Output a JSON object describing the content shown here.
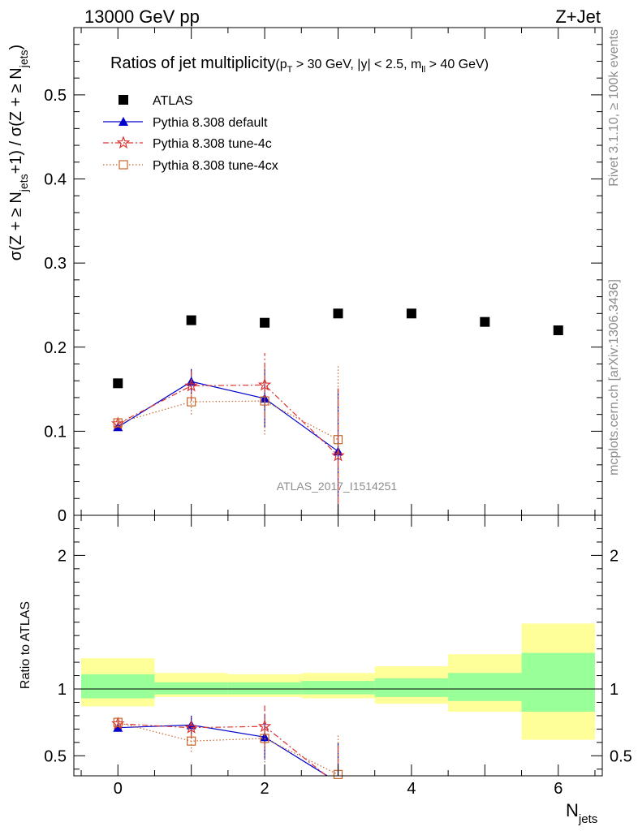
{
  "header": {
    "energy_label": "13000 GeV pp",
    "process_label": "Z+Jet"
  },
  "side_labels": {
    "rivet": "Rivet 3.1.10, ≥ 100k events",
    "mcplots": "mcplots.cern.ch [arXiv:1306.3436]"
  },
  "watermark": "ATLAS_2017_I1514251",
  "chart_data": [
    {
      "type": "scatter",
      "title_main": "Ratios of jet multiplicity",
      "title_cuts": {
        "p": "p",
        "T": "T",
        "cut1": " > 30 GeV, |y| < 2.5, m",
        "ll": "ll",
        "cut2": " > 40 GeV)",
        "open": "("
      },
      "ylabel_parts": {
        "a": "σ(Z + ≥ N",
        "jets1": "jets",
        "b": "+1) / σ(Z + ≥ N",
        "jets2": "jets",
        "c": ")"
      },
      "xlim": [
        -0.6,
        6.6
      ],
      "ylim": [
        0,
        0.58
      ],
      "yticks": [
        0,
        0.1,
        0.2,
        0.3,
        0.4,
        0.5
      ],
      "ytick_labels": [
        "0",
        "0.1",
        "0.2",
        "0.3",
        "0.4",
        "0.5"
      ],
      "legend": [
        "ATLAS",
        "Pythia 8.308 default",
        "Pythia 8.308 tune-4c",
        "Pythia 8.308 tune-4cx"
      ],
      "legend_position": "top-left",
      "series": [
        {
          "name": "ATLAS",
          "color": "#000000",
          "marker": "square",
          "x": [
            0,
            1,
            2,
            3,
            4,
            5,
            6
          ],
          "y": [
            0.157,
            0.232,
            0.229,
            0.24,
            0.24,
            0.23,
            0.22
          ]
        },
        {
          "name": "Pythia 8.308 default",
          "color": "#0000cc",
          "marker": "triangle",
          "line": "solid",
          "x": [
            0,
            1,
            2,
            3
          ],
          "y": [
            0.105,
            0.159,
            0.139,
            0.076
          ],
          "err": [
            0.003,
            0.015,
            0.035,
            0.075
          ]
        },
        {
          "name": "Pythia 8.308 tune-4c",
          "color": "#dd3333",
          "marker": "star",
          "line": "dashdot",
          "x": [
            0,
            1,
            2,
            3
          ],
          "y": [
            0.109,
            0.154,
            0.155,
            0.071
          ],
          "err": [
            0.003,
            0.018,
            0.038,
            0.08
          ]
        },
        {
          "name": "Pythia 8.308 tune-4cx",
          "color": "#c86428",
          "marker": "open-square",
          "line": "dotted",
          "x": [
            0,
            1,
            2,
            3
          ],
          "y": [
            0.11,
            0.135,
            0.136,
            0.09
          ],
          "err": [
            0.003,
            0.015,
            0.04,
            0.088
          ]
        }
      ]
    },
    {
      "type": "scatter",
      "ylabel": "Ratio to ATLAS",
      "xlabel_main": "N",
      "xlabel_sub": "jets",
      "xlim": [
        -0.6,
        6.6
      ],
      "ylim": [
        0.35,
        2.3
      ],
      "yticks": [
        0.5,
        1,
        2
      ],
      "ytick_labels": [
        "0.5",
        "1",
        "2"
      ],
      "xticks": [
        0,
        2,
        4,
        6
      ],
      "xtick_labels": [
        "0",
        "2",
        "4",
        "6"
      ],
      "reference_line": 1.0,
      "uncertainty_bands": [
        {
          "x0": -0.5,
          "x1": 0.5,
          "stat": [
            0.93,
            1.11
          ],
          "total": [
            0.87,
            1.23
          ]
        },
        {
          "x0": 0.5,
          "x1": 1.5,
          "stat": [
            0.96,
            1.05
          ],
          "total": [
            0.94,
            1.12
          ]
        },
        {
          "x0": 1.5,
          "x1": 2.5,
          "stat": [
            0.96,
            1.05
          ],
          "total": [
            0.94,
            1.11
          ]
        },
        {
          "x0": 2.5,
          "x1": 3.5,
          "stat": [
            0.96,
            1.06
          ],
          "total": [
            0.93,
            1.12
          ]
        },
        {
          "x0": 3.5,
          "x1": 4.5,
          "stat": [
            0.94,
            1.08
          ],
          "total": [
            0.89,
            1.17
          ]
        },
        {
          "x0": 4.5,
          "x1": 5.5,
          "stat": [
            0.91,
            1.12
          ],
          "total": [
            0.83,
            1.26
          ]
        },
        {
          "x0": 5.5,
          "x1": 6.5,
          "stat": [
            0.83,
            1.27
          ],
          "total": [
            0.62,
            1.49
          ]
        }
      ],
      "series": [
        {
          "name": "Pythia 8.308 default",
          "color": "#0000cc",
          "marker": "triangle",
          "line": "solid",
          "x": [
            0,
            1,
            2,
            3
          ],
          "y": [
            0.71,
            0.73,
            0.64,
            0.3
          ],
          "err": [
            0.02,
            0.07,
            0.17,
            0.3
          ]
        },
        {
          "name": "Pythia 8.308 tune-4c",
          "color": "#dd3333",
          "marker": "star",
          "line": "dashdot",
          "x": [
            0,
            1,
            2,
            3
          ],
          "y": [
            0.74,
            0.71,
            0.72,
            0.28
          ],
          "err": [
            0.02,
            0.08,
            0.16,
            0.3
          ]
        },
        {
          "name": "Pythia 8.308 tune-4cx",
          "color": "#c86428",
          "marker": "open-square",
          "line": "dotted",
          "x": [
            0,
            1,
            2,
            3
          ],
          "y": [
            0.75,
            0.61,
            0.63,
            0.36
          ],
          "err": [
            0.02,
            0.08,
            0.18,
            0.3
          ]
        }
      ]
    }
  ],
  "colors": {
    "band_total": "#ffff99",
    "band_stat": "#99ff99"
  }
}
